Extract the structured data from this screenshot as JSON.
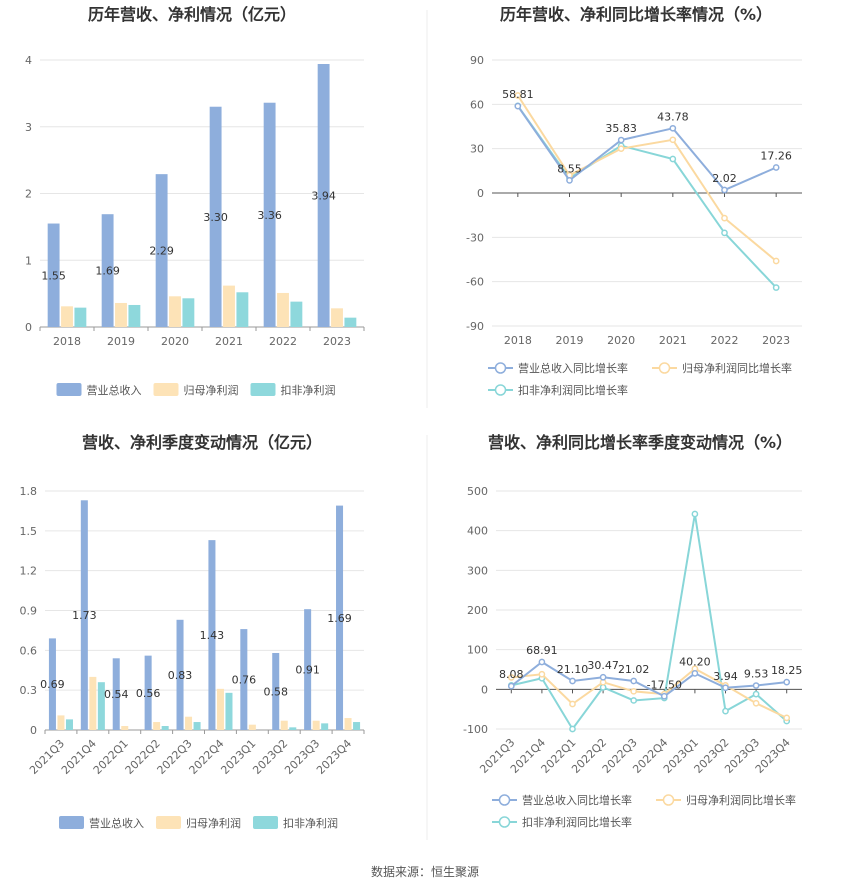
{
  "source": "数据来源：恒生聚源",
  "colors": {
    "revenue": "#8eaedc",
    "net": "#fde3b7",
    "deducted": "#8ed8dc",
    "revenue_line": "#8eaedc",
    "net_line": "#fbd9a0",
    "deducted_line": "#88d6d8"
  },
  "chart_data": [
    {
      "id": "annual-bar",
      "type": "bar",
      "title": "历年营收、净利情况（亿元）",
      "categories": [
        "2018",
        "2019",
        "2020",
        "2021",
        "2022",
        "2023"
      ],
      "ylim": [
        0,
        4
      ],
      "yticks": [
        0,
        1,
        2,
        3,
        4
      ],
      "series": [
        {
          "name": "营业总收入",
          "values": [
            1.55,
            1.69,
            2.29,
            3.3,
            3.36,
            3.94
          ],
          "labels": [
            "1.55",
            "1.69",
            "2.29",
            "3.30",
            "3.36",
            "3.94"
          ]
        },
        {
          "name": "归母净利润",
          "values": [
            0.31,
            0.36,
            0.46,
            0.62,
            0.51,
            0.28
          ]
        },
        {
          "name": "扣非净利润",
          "values": [
            0.29,
            0.33,
            0.43,
            0.52,
            0.38,
            0.14
          ]
        }
      ],
      "grid": true,
      "legend": "bottom"
    },
    {
      "id": "annual-line",
      "type": "line",
      "title": "历年营收、净利同比增长率情况（%）",
      "categories": [
        "2018",
        "2019",
        "2020",
        "2021",
        "2022",
        "2023"
      ],
      "ylim": [
        -90,
        90
      ],
      "yticks": [
        -90,
        -60,
        -30,
        0,
        30,
        60,
        90
      ],
      "series": [
        {
          "name": "营业总收入同比增长率",
          "values": [
            58.81,
            8.55,
            35.83,
            43.78,
            2.02,
            17.26
          ],
          "labels": [
            "58.81",
            "8.55",
            "35.83",
            "43.78",
            "2.02",
            "17.26"
          ]
        },
        {
          "name": "归母净利润同比增长率",
          "values": [
            66,
            12,
            30,
            36,
            -17,
            -46
          ]
        },
        {
          "name": "扣非净利润同比增长率",
          "values": [
            59,
            10,
            32,
            23,
            -27,
            -64
          ]
        }
      ],
      "grid": true,
      "legend": "bottom"
    },
    {
      "id": "quarter-bar",
      "type": "bar",
      "title": "营收、净利季度变动情况（亿元）",
      "categories": [
        "2021Q3",
        "2021Q4",
        "2022Q1",
        "2022Q2",
        "2022Q3",
        "2022Q4",
        "2023Q1",
        "2023Q2",
        "2023Q3",
        "2023Q4"
      ],
      "ylim": [
        0,
        1.8
      ],
      "yticks": [
        0,
        0.3,
        0.6,
        0.9,
        1.2,
        1.5,
        1.8
      ],
      "series": [
        {
          "name": "营业总收入",
          "values": [
            0.69,
            1.73,
            0.54,
            0.56,
            0.83,
            1.43,
            0.76,
            0.58,
            0.91,
            1.69
          ],
          "labels": [
            "0.69",
            "1.73",
            "0.54",
            "0.56",
            "0.83",
            "1.43",
            "0.76",
            "0.58",
            "0.91",
            "1.69"
          ]
        },
        {
          "name": "归母净利润",
          "values": [
            0.11,
            0.4,
            0.03,
            0.06,
            0.1,
            0.31,
            0.04,
            0.07,
            0.07,
            0.09
          ]
        },
        {
          "name": "扣非净利润",
          "values": [
            0.08,
            0.36,
            0.0,
            0.03,
            0.06,
            0.28,
            0.0,
            0.02,
            0.05,
            0.06
          ]
        }
      ],
      "grid": true,
      "legend": "bottom"
    },
    {
      "id": "quarter-line",
      "type": "line",
      "title": "营收、净利同比增长率季度变动情况（%）",
      "categories": [
        "2021Q3",
        "2021Q4",
        "2022Q1",
        "2022Q2",
        "2022Q3",
        "2022Q4",
        "2023Q1",
        "2023Q2",
        "2023Q3",
        "2023Q4"
      ],
      "ylim": [
        -100,
        500
      ],
      "yticks": [
        -100,
        0,
        100,
        200,
        300,
        400,
        500
      ],
      "series": [
        {
          "name": "营业总收入同比增长率",
          "values": [
            8.08,
            68.91,
            21.1,
            30.47,
            21.02,
            -17.5,
            40.2,
            3.94,
            9.53,
            18.25
          ],
          "labels": [
            "8.08",
            "68.91",
            "21.10",
            "30.47",
            "21.02",
            "-17.50",
            "40.20",
            "3.94",
            "9.53",
            "18.25"
          ]
        },
        {
          "name": "归母净利润同比增长率",
          "values": [
            30,
            38,
            -37,
            18,
            -5,
            -12,
            52,
            10,
            -35,
            -72
          ]
        },
        {
          "name": "扣非净利润同比增长率",
          "values": [
            10,
            28,
            -100,
            5,
            -28,
            -22,
            442,
            -55,
            -12,
            -80
          ]
        }
      ],
      "grid": true,
      "legend": "bottom"
    }
  ]
}
